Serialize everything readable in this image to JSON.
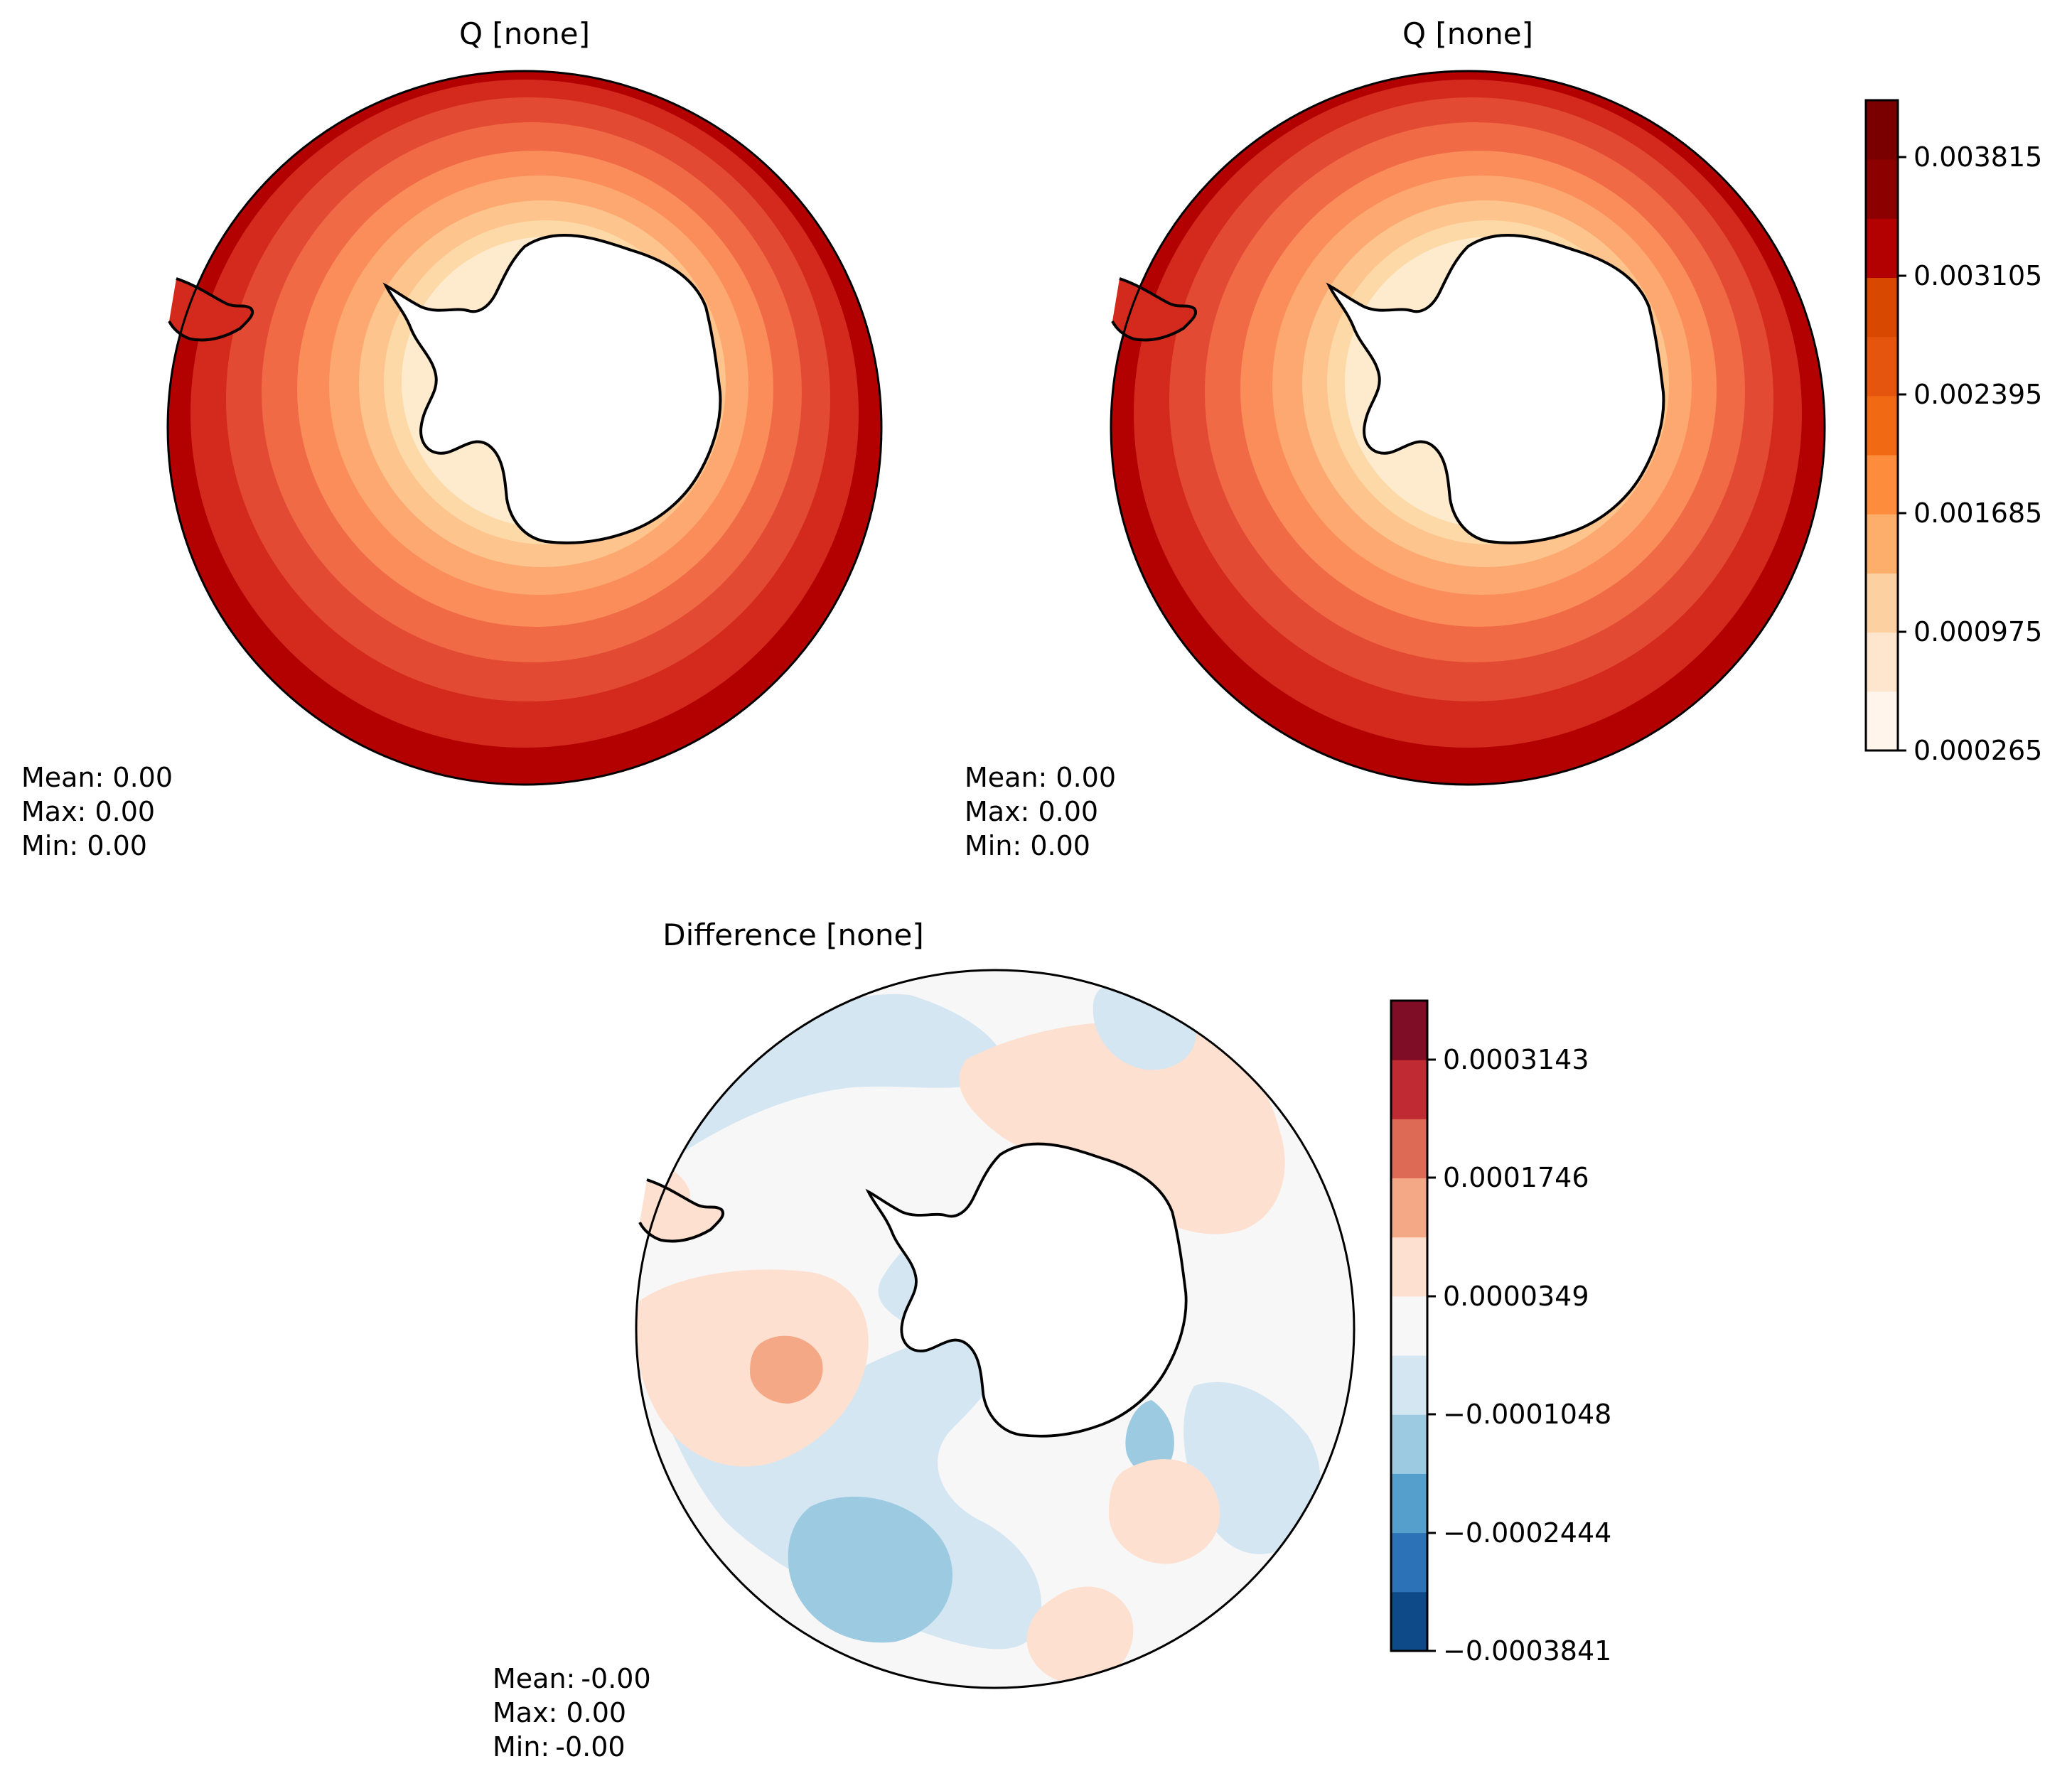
{
  "panels": [
    {
      "id": "test",
      "title": "Q [none]",
      "stats": [
        {
          "label": "Mean:",
          "value": " 0.00"
        },
        {
          "label": "Max:",
          "value": " 0.00"
        },
        {
          "label": "Min:",
          "value": " 0.00"
        }
      ]
    },
    {
      "id": "reference",
      "title": "Q [none]",
      "stats": [
        {
          "label": "Mean:",
          "value": " 0.00"
        },
        {
          "label": "Max:",
          "value": " 0.00"
        },
        {
          "label": "Min:",
          "value": " 0.00"
        }
      ]
    },
    {
      "id": "difference",
      "title": "Difference [none]",
      "stats": [
        {
          "label": "Mean:",
          "value": "-0.00"
        },
        {
          "label": "Max:",
          "value": " 0.00"
        },
        {
          "label": "Min:",
          "value": "-0.00"
        }
      ]
    }
  ],
  "colorbars": [
    {
      "id": "main",
      "colors": [
        "#fff5eb",
        "#fee6ce",
        "#fdd0a2",
        "#fdae6b",
        "#fd8d3c",
        "#f16913",
        "#e6550d",
        "#d94801",
        "#b30000",
        "#8c0000",
        "#7a0000"
      ],
      "tick_labels": [
        "0.000265",
        "0.000975",
        "0.001685",
        "0.002395",
        "0.003105",
        "0.003815"
      ]
    },
    {
      "id": "diff",
      "colors": [
        "#0d4a87",
        "#2b72b6",
        "#559fcd",
        "#9ccae1",
        "#d4e6f2",
        "#f7f7f7",
        "#fde0d0",
        "#f4a886",
        "#dc6a55",
        "#bf2a33",
        "#7f0d25"
      ],
      "tick_labels": [
        "−0.0003841",
        "−0.0002444",
        "−0.0001048",
        "0.0000349",
        "0.0001746",
        "0.0003143"
      ]
    }
  ],
  "map_fill": {
    "main_rings": [
      "#b30000",
      "#d42a1d",
      "#e34a33",
      "#ef6a45",
      "#fb8d5a",
      "#fca870",
      "#fdc48d",
      "#fdd9a8",
      "#feebcd"
    ],
    "land": "#ffffff",
    "coast": "#000000"
  }
}
